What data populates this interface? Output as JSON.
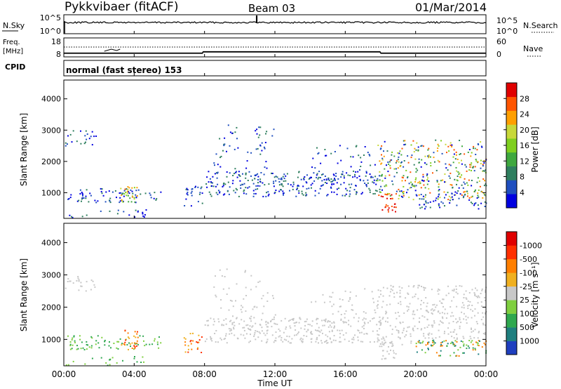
{
  "header": {
    "station": "Pykkvibaer (fitACF)",
    "beam": "Beam 03",
    "date": "01/Mar/2014"
  },
  "labels": {
    "nsky": "N.Sky",
    "freq": "Freq.",
    "freq_unit": "[MHz]",
    "cpid": "CPID",
    "nsearch": "N.Search",
    "nave": "Nave",
    "cpid_text": "normal (fast stereo) 153",
    "time_axis": "Time UT"
  },
  "chart_data": [
    {
      "type": "line",
      "name": "noise",
      "ylabel_left": "N.Sky",
      "ylabel_right": "N.Search",
      "left_ticks": [
        "10^5",
        "10^0"
      ],
      "right_ticks": [
        "10^5",
        "10^0"
      ],
      "nsky_level": 1000,
      "spikes_hours": [
        10.95,
        10.98
      ],
      "xlim": [
        0,
        24
      ]
    },
    {
      "type": "line",
      "name": "frequency",
      "ylabel_left": "Freq. [MHz]",
      "ylabel_right": "Nave",
      "left_ticks": [
        "18",
        "8"
      ],
      "right_ticks": [
        "60",
        "0"
      ],
      "freq_segments": [
        {
          "start": 0,
          "end": 7.9,
          "value": 10.2
        },
        {
          "start": 7.9,
          "end": 18,
          "value": 11.5
        },
        {
          "start": 18,
          "end": 24,
          "value": 10.2
        }
      ],
      "nave_level": 11.8,
      "xlim": [
        0,
        24
      ]
    },
    {
      "type": "heatmap",
      "name": "power",
      "ylabel": "Slant Range [km]",
      "yticks": [
        "1000",
        "2000",
        "3000",
        "4000"
      ],
      "ylim": [
        180,
        4600
      ],
      "colorbar_label": "Power [dB]",
      "colorbar_ticks": [
        "4",
        "8",
        "12",
        "16",
        "20",
        "24",
        "28"
      ],
      "colors": [
        "#0000e0",
        "#1f4fbf",
        "#2f7f5f",
        "#3fa83f",
        "#7fcf1f",
        "#c8d83a",
        "#ff9f00",
        "#ff5500",
        "#e00000"
      ],
      "vmin": 0,
      "vmax": 32
    },
    {
      "type": "heatmap",
      "name": "velocity",
      "ylabel": "Slant Range [km]",
      "yticks": [
        "1000",
        "2000",
        "3000",
        "4000"
      ],
      "ylim": [
        180,
        4600
      ],
      "colorbar_label": "Velocity [m s⁻¹]",
      "colorbar_ticks": [
        "1000",
        "500",
        "100",
        "25",
        "-25",
        "-100",
        "-500",
        "-1000"
      ],
      "colors": [
        "#1f3fbf",
        "#1f7f7f",
        "#2fa84f",
        "#7fcf3f",
        "#c8c8c8",
        "#f0b020",
        "#ff7f00",
        "#ff3000",
        "#e00000"
      ],
      "xticks": [
        "00:00",
        "04:00",
        "08:00",
        "12:00",
        "16:00",
        "20:00",
        "00:00"
      ],
      "xlabel": "Time UT"
    }
  ]
}
